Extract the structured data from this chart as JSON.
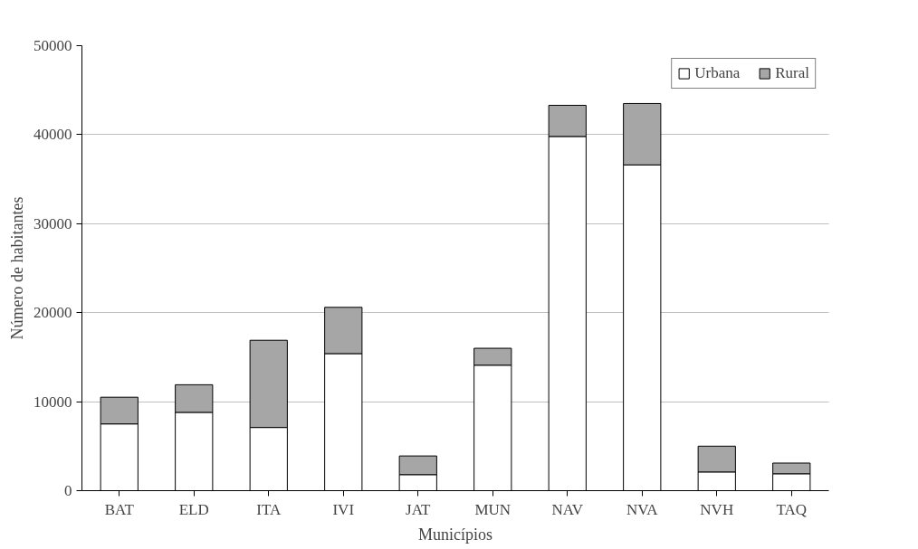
{
  "chart_data": {
    "type": "bar",
    "stacked": true,
    "xlabel": "Municípios",
    "ylabel": "Número de habitantes",
    "categories": [
      "BAT",
      "ELD",
      "ITA",
      "IVI",
      "JAT",
      "MUN",
      "NAV",
      "NVA",
      "NVH",
      "TAQ"
    ],
    "series": [
      {
        "name": "Urbana",
        "color": "#ffffff",
        "values": [
          7500,
          8800,
          7100,
          15400,
          1800,
          14100,
          39800,
          36600,
          2100,
          1900
        ]
      },
      {
        "name": "Rural",
        "color": "#a6a6a6",
        "values": [
          3000,
          3100,
          9800,
          5200,
          2100,
          1900,
          3500,
          6900,
          2900,
          1200
        ]
      }
    ],
    "ylim": [
      0,
      50000
    ],
    "yticks": [
      0,
      10000,
      20000,
      30000,
      40000,
      50000
    ],
    "grid": "y",
    "legend": "top right"
  }
}
